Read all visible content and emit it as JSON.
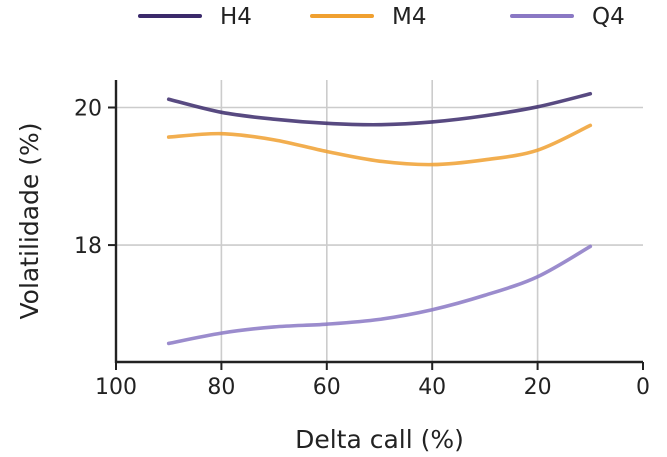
{
  "chart_data": {
    "type": "line",
    "title": "",
    "xlabel": "Delta call (%)",
    "ylabel": "Volatilidade (%)",
    "xlim": [
      100,
      0
    ],
    "ylim": [
      16.3,
      20.4
    ],
    "xticks": [
      100,
      80,
      60,
      40,
      20,
      0
    ],
    "yticks": [
      18,
      20
    ],
    "grid": true,
    "legend_position": "top",
    "x": [
      90,
      80,
      70,
      60,
      50,
      40,
      30,
      20,
      10
    ],
    "series": [
      {
        "name": "H4",
        "color": "#3b2a6b",
        "values": [
          20.12,
          19.93,
          19.83,
          19.77,
          19.75,
          19.79,
          19.88,
          20.01,
          20.2
        ]
      },
      {
        "name": "M4",
        "color": "#f0a030",
        "values": [
          19.57,
          19.62,
          19.53,
          19.36,
          19.22,
          19.17,
          19.24,
          19.38,
          19.74
        ]
      },
      {
        "name": "Q4",
        "color": "#8a78c4",
        "values": [
          16.57,
          16.72,
          16.81,
          16.85,
          16.92,
          17.06,
          17.27,
          17.54,
          17.98
        ]
      }
    ]
  }
}
